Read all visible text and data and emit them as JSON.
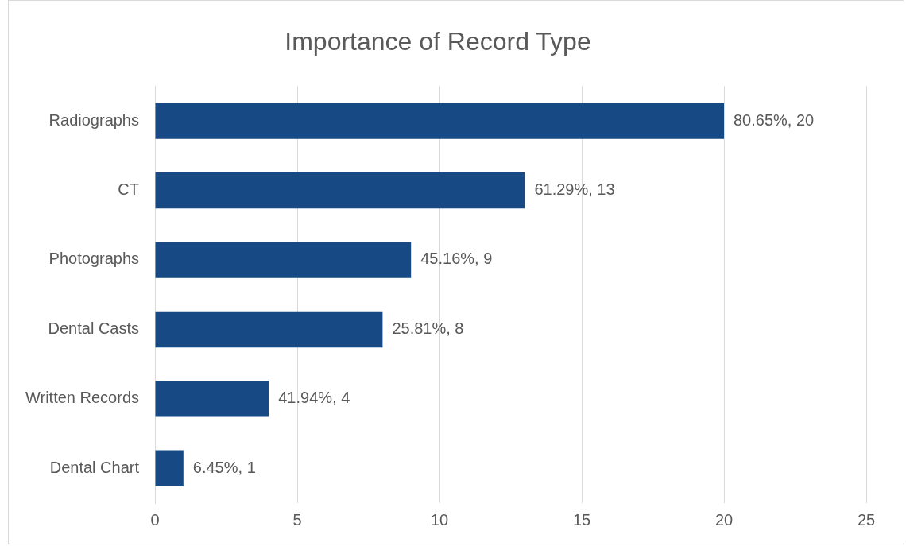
{
  "chart_data": {
    "type": "bar",
    "title": "Importance of Record Type",
    "orientation": "horizontal",
    "categories": [
      "Radiographs",
      "CT",
      "Photographs",
      "Dental Casts",
      "Written Records",
      "Dental Chart"
    ],
    "values": [
      20,
      13,
      9,
      8,
      4,
      1
    ],
    "value_labels": [
      "80.65%, 20",
      "61.29%, 13",
      "45.16%, 9",
      "25.81%, 8",
      "41.94%, 4",
      "6.45%, 1"
    ],
    "color": "#174a84",
    "xlim": [
      0,
      25
    ],
    "xticks": [
      0,
      5,
      10,
      15,
      20,
      25
    ],
    "grid": "x"
  }
}
